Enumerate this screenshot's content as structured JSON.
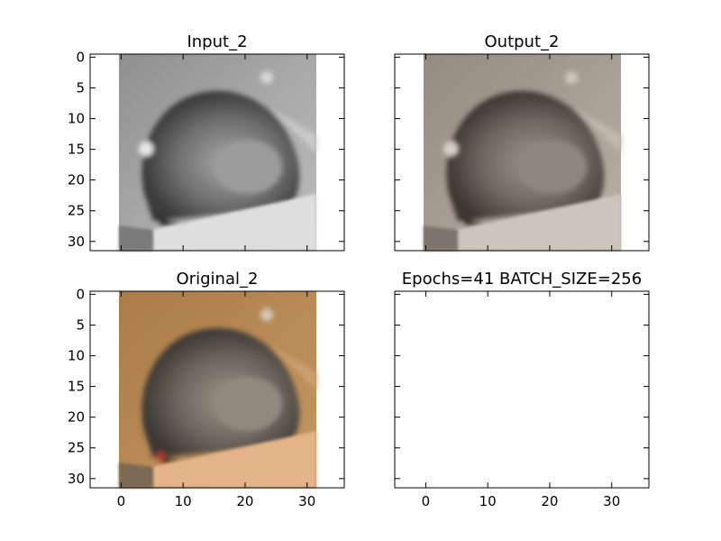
{
  "figure": {
    "background": "#ffffff",
    "axis_color": "#000000"
  },
  "chart_data": [
    {
      "type": "image",
      "title": "Input_2",
      "image": "grayscale cat photo (cat curled in a box)",
      "x_ticks": [],
      "y_ticks": [
        "0",
        "5",
        "10",
        "15",
        "20",
        "25",
        "30"
      ],
      "xlim": [
        -5,
        36
      ],
      "ylim": [
        31.5,
        -0.5
      ],
      "image_extent": [
        -0.5,
        31.5
      ]
    },
    {
      "type": "image",
      "title": "Output_2",
      "image": "muted-color reconstructed cat photo",
      "x_ticks": [],
      "y_ticks": [],
      "xlim": [
        -5,
        36
      ],
      "ylim": [
        31.5,
        -0.5
      ],
      "image_extent": [
        -0.5,
        31.5
      ]
    },
    {
      "type": "image",
      "title": "Original_2",
      "image": "original color cat photo (tan cardboard box)",
      "x_ticks": [
        "0",
        "10",
        "20",
        "30"
      ],
      "y_ticks": [
        "0",
        "5",
        "10",
        "15",
        "20",
        "25",
        "30"
      ],
      "xlim": [
        -5,
        36
      ],
      "ylim": [
        31.5,
        -0.5
      ],
      "image_extent": [
        -0.5,
        31.5
      ]
    },
    {
      "type": "empty",
      "title": "Epochs=41 BATCH_SIZE=256",
      "x_ticks": [
        "0",
        "10",
        "20",
        "30"
      ],
      "y_ticks": [],
      "xlim": [
        -5,
        36
      ],
      "ylim": [
        31.5,
        -0.5
      ]
    }
  ]
}
